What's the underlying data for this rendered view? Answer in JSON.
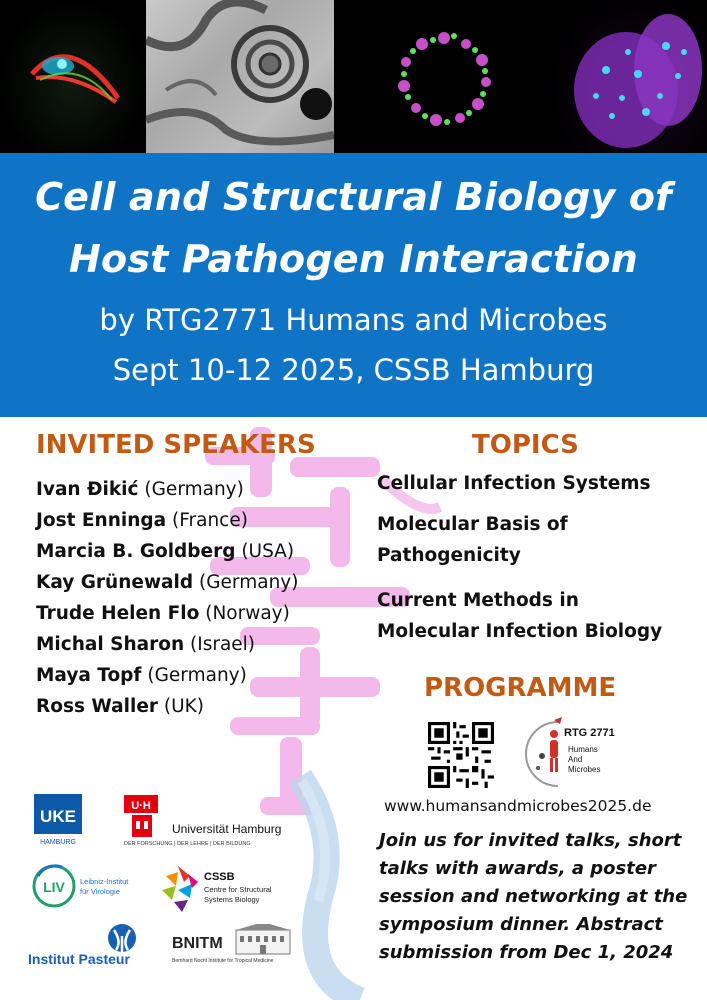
{
  "title_lines": [
    "Cell and Structural Biology of",
    "Host Pathogen Interaction"
  ],
  "subtitle_lines": [
    "by RTG2771 Humans and Microbes",
    "Sept 10-12 2025, CSSB Hamburg"
  ],
  "speakers_heading": "INVITED SPEAKERS",
  "speakers": [
    {
      "name": "Ivan Đikić",
      "country": " (Germany)"
    },
    {
      "name": "Jost Enninga",
      "country": " (France)"
    },
    {
      "name": "Marcia B. Goldberg",
      "country": " (USA)"
    },
    {
      "name": "Kay Grünewald",
      "country": " (Germany)"
    },
    {
      "name": "Trude Helen Flo",
      "country": " (Norway)"
    },
    {
      "name": "Michal Sharon",
      "country": " (Israel)"
    },
    {
      "name": "Maya Topf",
      "country": " (Germany)"
    },
    {
      "name": "Ross Waller",
      "country": " (UK)"
    }
  ],
  "topics_heading": "TOPICS",
  "topics": [
    [
      "Cellular Infection Systems"
    ],
    [
      "Molecular Basis of",
      "Pathogenicity"
    ],
    [
      "Current Methods in",
      "Molecular Infection Biology"
    ]
  ],
  "programme_heading": "PROGRAMME",
  "rtg_logo": {
    "name": "RTG 2771",
    "sub": [
      "Humans",
      "And",
      "Microbes"
    ]
  },
  "url": "www.humansandmicrobes2025.de",
  "join_lines": [
    "Join us for invited talks, short",
    "talks with awards, a poster",
    "session and networking at the",
    "symposium dinner. Abstract",
    "submission from Dec 1, 2024"
  ],
  "logos": {
    "uke": {
      "mark": "UKE",
      "sub": "HAMBURG"
    },
    "uhh": {
      "mark": "U·H",
      "name": "Universität Hamburg",
      "sub": "DER FORSCHUNG | DER LEHRE | DER BILDUNG"
    },
    "liv": {
      "mark": "LIV",
      "name": [
        "Leibniz-Institut",
        "für Virologie"
      ]
    },
    "cssb": {
      "mark": "CSSB",
      "name": [
        "Centre for Structural",
        "Systems Biology"
      ]
    },
    "pasteur": {
      "name": "Institut Pasteur"
    },
    "bnitm": {
      "mark": "BNITM",
      "sub": "Bernhard Nocht Institute for Tropical Medicine"
    }
  },
  "colors": {
    "band": "#1074c6",
    "heading": "#c25a14",
    "watermark": "#e98bd6"
  }
}
